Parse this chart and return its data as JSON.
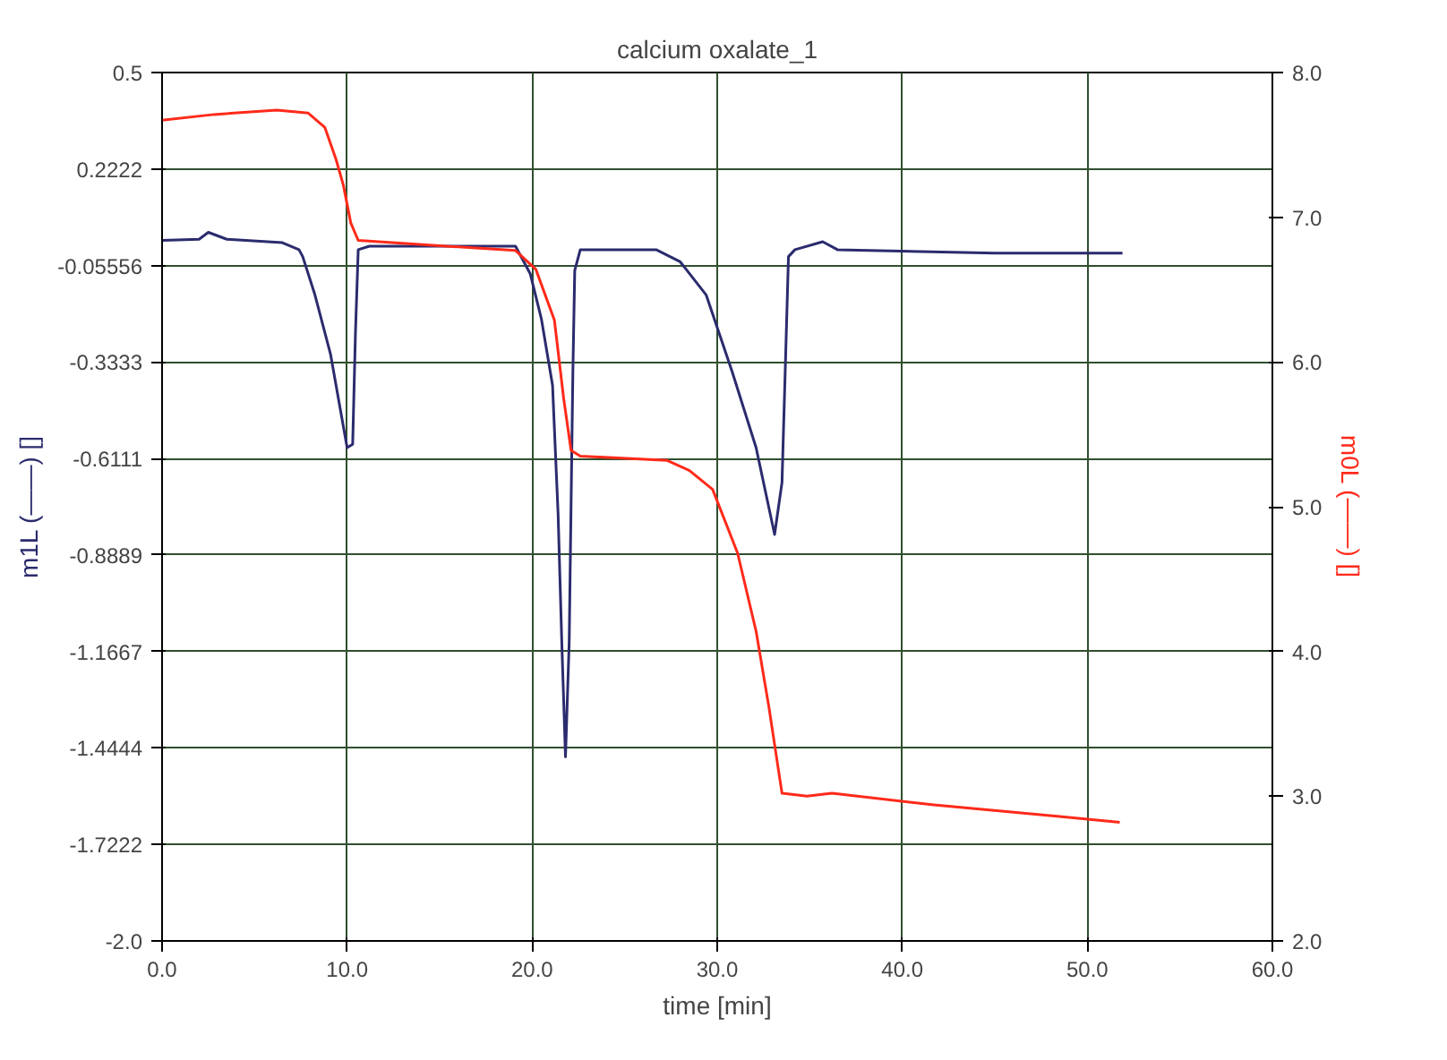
{
  "chart_data": {
    "type": "line",
    "title": "calcium oxalate_1",
    "xlabel": "time [min]",
    "ylabel": "m1L (——) []",
    "y2label": "m0L (——) []",
    "xlim": [
      0,
      60
    ],
    "xticks": [
      {
        "value": 0,
        "label": "0.0"
      },
      {
        "value": 10,
        "label": "10.0"
      },
      {
        "value": 20,
        "label": "20.0"
      },
      {
        "value": 30,
        "label": "30.0"
      },
      {
        "value": 40,
        "label": "40.0"
      },
      {
        "value": 50,
        "label": "50.0"
      },
      {
        "value": 60,
        "label": "60.0"
      }
    ],
    "ylim": [
      -2.0,
      0.5
    ],
    "yticks": [
      {
        "value": -2.0,
        "label": "-2.0"
      },
      -1.7222,
      -1.4444,
      -1.1667,
      -0.8889,
      -0.6111,
      -0.3333,
      -0.05556,
      0.2222,
      0.5
    ],
    "y2lim": [
      2.0,
      8.0
    ],
    "y2ticks": [
      {
        "value": 2,
        "label": "2.0"
      },
      {
        "value": 3,
        "label": "3.0"
      },
      {
        "value": 4,
        "label": "4.0"
      },
      {
        "value": 5,
        "label": "5.0"
      },
      {
        "value": 6,
        "label": "6.0"
      },
      {
        "value": 7,
        "label": "7.0"
      },
      {
        "value": 8,
        "label": "8.0"
      }
    ],
    "grid": true,
    "line_style": "solid",
    "series": [
      {
        "color": "#2b2b6e",
        "x": [
          0,
          2.0,
          2.5,
          3.5,
          6.5,
          7.4,
          7.6,
          8.26,
          9.1,
          9.6,
          10.0,
          10.3,
          10.45,
          10.6,
          11.2,
          15.0,
          19.1,
          19.9,
          20.5,
          21.1,
          21.4,
          21.6,
          21.8,
          22.0,
          22.2,
          22.3,
          22.6,
          26.7,
          28.0,
          29.4,
          30.8,
          32.1,
          33.1,
          33.5,
          33.7,
          33.85,
          34.2,
          35.7,
          36.5,
          45.0,
          51.9
        ],
        "values": [
          0.017,
          0.02,
          0.04,
          0.02,
          0.01,
          -0.01,
          -0.03,
          -0.14,
          -0.31,
          -0.46,
          -0.58,
          -0.57,
          -0.25,
          -0.01,
          0.0,
          0.0,
          0.0,
          -0.08,
          -0.21,
          -0.4,
          -0.77,
          -1.14,
          -1.47,
          -1.14,
          -0.36,
          -0.07,
          -0.01,
          -0.01,
          -0.045,
          -0.14,
          -0.36,
          -0.58,
          -0.83,
          -0.68,
          -0.31,
          -0.03,
          -0.01,
          0.013,
          -0.01,
          -0.02,
          -0.02
        ]
      },
      {
        "color": "#ff2a1a",
        "axis": "y2",
        "x": [
          0,
          2.8,
          6.2,
          7.9,
          8.8,
          9.4,
          9.8,
          10.2,
          10.6,
          13.0,
          19.1,
          20.2,
          21.2,
          21.7,
          22.1,
          22.6,
          27.3,
          28.5,
          29.75,
          31.1,
          32.1,
          32.8,
          33.5,
          34.85,
          36.2,
          41.7,
          48.5,
          51.75
        ],
        "values": [
          7.67,
          7.71,
          7.74,
          7.72,
          7.62,
          7.4,
          7.22,
          6.96,
          6.84,
          6.82,
          6.77,
          6.64,
          6.29,
          5.75,
          5.39,
          5.35,
          5.32,
          5.25,
          5.12,
          4.68,
          4.14,
          3.61,
          3.02,
          3.0,
          3.02,
          2.94,
          2.86,
          2.82
        ]
      }
    ]
  }
}
